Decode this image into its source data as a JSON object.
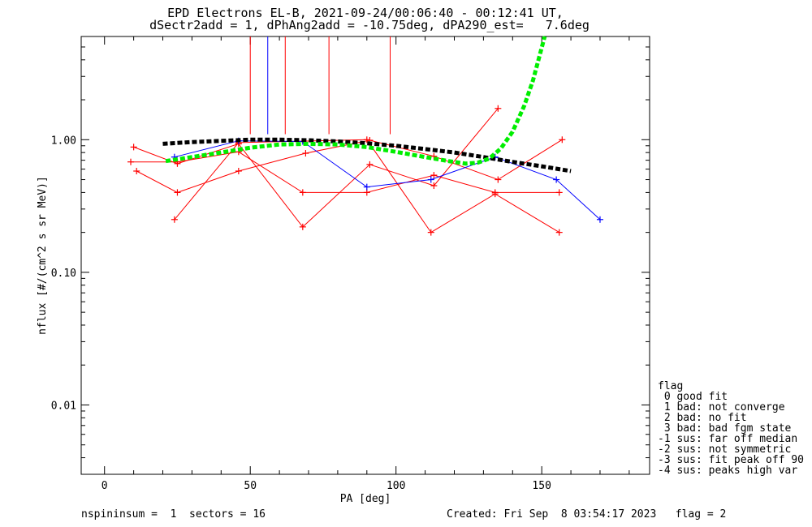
{
  "title_line1": "EPD Electrons EL-B, 2021-09-24/00:06:40 - 00:12:41 UT,",
  "title_line2": "dSectr2add = 1, dPhAng2add = -10.75deg, dPA290_est=   7.6deg",
  "footer_left": "nspininsum =  1  sectors = 16",
  "footer_right": "Created: Fri Sep  8 03:54:17 2023   flag = 2",
  "legend": {
    "title": "flag",
    "items": [
      " 0 good fit",
      " 1 bad: not converge",
      " 2 bad: no fit",
      " 3 bad: bad fgm state",
      "-1 sus: far off median",
      "-2 sus: not symmetric",
      "-3 sus: fit peak off 90",
      "-4 sus: peaks high var"
    ]
  },
  "chart_data": {
    "type": "line",
    "xlabel": "PA [deg]",
    "ylabel": "nflux [#/(cm^2 s sr MeV)]",
    "xlim": [
      -8,
      187
    ],
    "ylim": [
      0.003,
      6.0
    ],
    "yscale": "log",
    "x_ticks": [
      0,
      50,
      100,
      150
    ],
    "x_tick_labels": [
      "0",
      "50",
      "100",
      "150"
    ],
    "y_ticks": [
      0.01,
      0.1,
      1.0
    ],
    "y_tick_labels": [
      "0.01",
      "0.10",
      "1.00"
    ],
    "colors": {
      "red": "#ff0000",
      "blue": "#0000ff",
      "black": "#000000",
      "green": "#00ee00"
    },
    "series": [
      {
        "color": "#ff0000",
        "points": [
          [
            9,
            0.68
          ],
          [
            25,
            0.68
          ],
          [
            46,
            0.81
          ],
          [
            68,
            0.4
          ],
          [
            90,
            0.4
          ],
          [
            113,
            0.54
          ],
          [
            134,
            0.4
          ],
          [
            156,
            0.4
          ]
        ]
      },
      {
        "color": "#ff0000",
        "points": [
          [
            10,
            0.88
          ],
          [
            25,
            0.66
          ],
          [
            46,
            0.93
          ],
          [
            68,
            0.22
          ],
          [
            91,
            0.65
          ],
          [
            113,
            0.45
          ],
          [
            135,
            1.72
          ]
        ]
      },
      {
        "color": "#ff0000",
        "points": [
          [
            11,
            0.58
          ],
          [
            25,
            0.4
          ],
          [
            46,
            0.58
          ],
          [
            69,
            0.79
          ],
          [
            91,
            0.99
          ],
          [
            113,
            0.75
          ],
          [
            135,
            0.5
          ],
          [
            157,
            1.0
          ]
        ]
      },
      {
        "color": "#ff0000",
        "points": [
          [
            24,
            0.25
          ],
          [
            46,
            0.95
          ],
          [
            90,
            1.0
          ],
          [
            112,
            0.2
          ],
          [
            134,
            0.39
          ],
          [
            156,
            0.2
          ]
        ]
      },
      {
        "color": "#0000ff",
        "points": [
          [
            24,
            0.74
          ],
          [
            46,
            0.98
          ],
          [
            68,
            0.97
          ],
          [
            90,
            0.44
          ],
          [
            112,
            0.5
          ],
          [
            134,
            0.74
          ],
          [
            155,
            0.5
          ],
          [
            170,
            0.25
          ]
        ]
      },
      {
        "color": "#000000",
        "style": "dashed-thick",
        "points": [
          [
            20,
            0.93
          ],
          [
            30,
            0.96
          ],
          [
            40,
            0.98
          ],
          [
            50,
            1.0
          ],
          [
            60,
            1.0
          ],
          [
            70,
            0.99
          ],
          [
            80,
            0.97
          ],
          [
            90,
            0.94
          ],
          [
            100,
            0.9
          ],
          [
            110,
            0.85
          ],
          [
            120,
            0.8
          ],
          [
            130,
            0.74
          ],
          [
            140,
            0.68
          ],
          [
            150,
            0.63
          ],
          [
            160,
            0.58
          ]
        ]
      },
      {
        "color": "#00ee00",
        "style": "dashed-thick",
        "points": [
          [
            21,
            0.69
          ],
          [
            30,
            0.74
          ],
          [
            40,
            0.8
          ],
          [
            50,
            0.87
          ],
          [
            60,
            0.92
          ],
          [
            70,
            0.93
          ],
          [
            80,
            0.92
          ],
          [
            90,
            0.88
          ],
          [
            100,
            0.81
          ],
          [
            110,
            0.74
          ],
          [
            118,
            0.69
          ],
          [
            124,
            0.66
          ],
          [
            128,
            0.67
          ],
          [
            132,
            0.72
          ],
          [
            136,
            0.86
          ],
          [
            140,
            1.15
          ],
          [
            144,
            1.8
          ],
          [
            147,
            2.8
          ],
          [
            149,
            4.1
          ],
          [
            151,
            6.0
          ]
        ]
      }
    ],
    "vertical_lines": [
      {
        "x": 50,
        "color": "#ff0000"
      },
      {
        "x": 56,
        "color": "#0000ff"
      },
      {
        "x": 62,
        "color": "#ff0000"
      },
      {
        "x": 77,
        "color": "#ff0000"
      },
      {
        "x": 98,
        "color": "#ff0000"
      }
    ],
    "vertical_line_bottom_y": 1.1
  }
}
